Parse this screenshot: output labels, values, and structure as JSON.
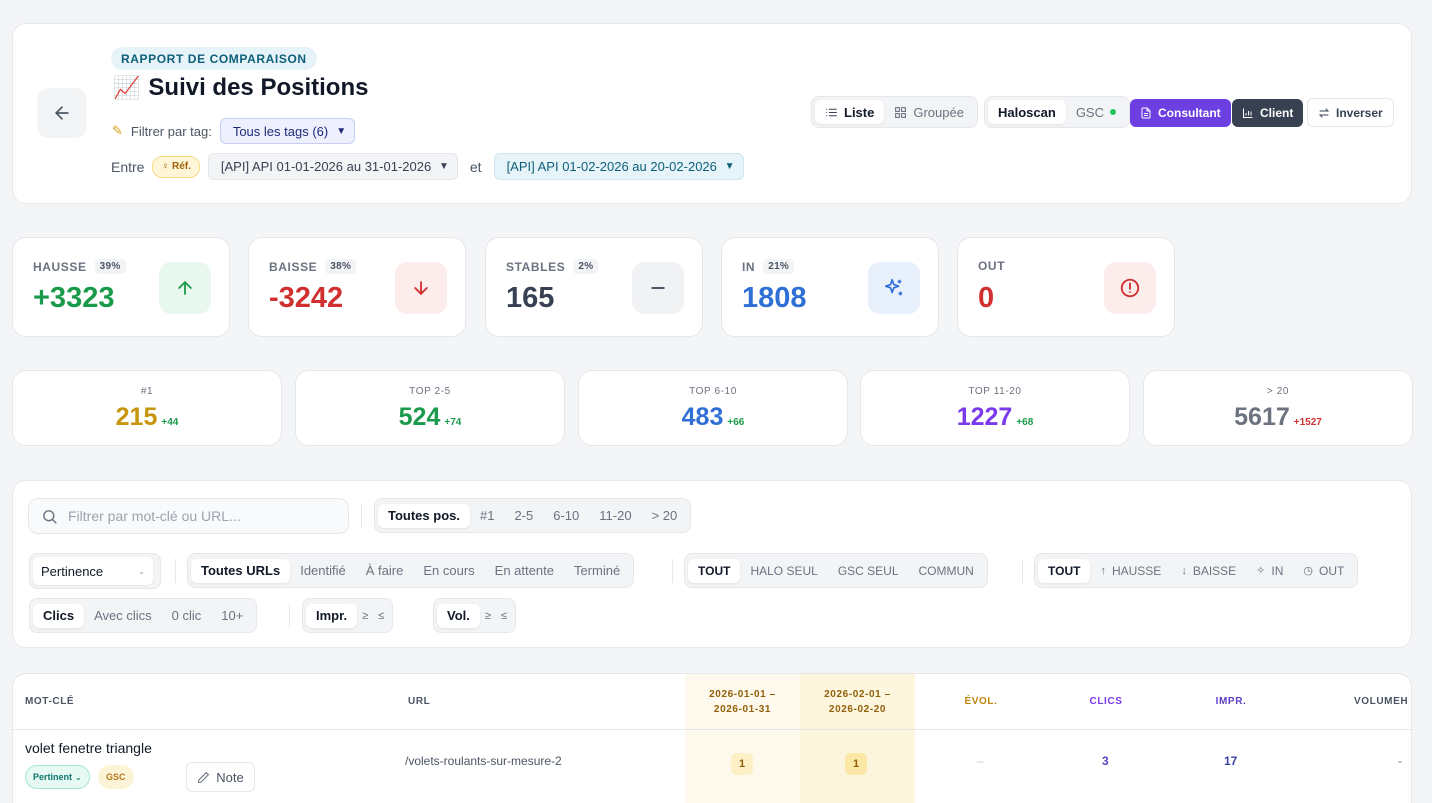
{
  "header": {
    "report_badge": "RAPPORT DE COMPARAISON",
    "emoji": "📈",
    "title": "Suivi des Positions",
    "tag_filter_label": "Filtrer par tag:",
    "tag_filter_value": "Tous les tags (6)",
    "between_label": "Entre",
    "ref_badge": "Réf.",
    "date_a": "[API] API 01-01-2026 au 31-01-2026",
    "and_label": "et",
    "date_b": "[API] API 01-02-2026 au 20-02-2026",
    "view_toggle": [
      "Liste",
      "Groupée"
    ],
    "source_toggle": [
      "Haloscan",
      "GSC"
    ],
    "consultant_label": "Consultant",
    "client_label": "Client",
    "invert_label": "Inverser"
  },
  "stats": [
    {
      "key": "hausse",
      "label": "HAUSSE",
      "pct": "39%",
      "value": "+3323",
      "color": "#1a9a4b",
      "icon_bg": "#e9f8ef",
      "icon": "arrow-up-icon"
    },
    {
      "key": "baisse",
      "label": "BAISSE",
      "pct": "38%",
      "value": "-3242",
      "color": "#d03030",
      "icon_bg": "#fdecec",
      "icon": "arrow-down-icon"
    },
    {
      "key": "stables",
      "label": "STABLES",
      "pct": "2%",
      "value": "165",
      "color": "#374151",
      "icon_bg": "#f1f2f4",
      "icon": "minus-icon"
    },
    {
      "key": "in",
      "label": "IN",
      "pct": "21%",
      "value": "1808",
      "color": "#2f6fd6",
      "icon_bg": "#e8f0fc",
      "icon": "sparkles-icon"
    },
    {
      "key": "out",
      "label": "OUT",
      "pct": "",
      "value": "0",
      "color": "#d03030",
      "icon_bg": "#fdecec",
      "icon": "alert-circle-icon"
    }
  ],
  "ranks": [
    {
      "label": "#1",
      "value": "215",
      "delta": "+44",
      "color": "#c8960c",
      "delta_color": "#1a9a4b"
    },
    {
      "label": "TOP 2-5",
      "value": "524",
      "delta": "+74",
      "color": "#1a9a4b",
      "delta_color": "#1a9a4b"
    },
    {
      "label": "TOP 6-10",
      "value": "483",
      "delta": "+66",
      "color": "#2f6fd6",
      "delta_color": "#1a9a4b"
    },
    {
      "label": "TOP 11-20",
      "value": "1227",
      "delta": "+68",
      "color": "#7c3aed",
      "delta_color": "#1a9a4b"
    },
    {
      "label": "> 20",
      "value": "5617",
      "delta": "+1527",
      "color": "#6b7280",
      "delta_color": "#d03030"
    }
  ],
  "filters": {
    "search_placeholder": "Filtrer par mot-clé ou URL...",
    "positions": [
      "Toutes pos.",
      "#1",
      "2-5",
      "6-10",
      "11-20",
      "> 20"
    ],
    "relevance": "Pertinence",
    "url_status": [
      "Toutes URLs",
      "Identifié",
      "À faire",
      "En cours",
      "En attente",
      "Terminé"
    ],
    "source": [
      "TOUT",
      "HALO SEUL",
      "GSC SEUL",
      "COMMUN"
    ],
    "movement": [
      "TOUT",
      "HAUSSE",
      "BAISSE",
      "IN",
      "OUT"
    ],
    "movement_icons": [
      "",
      "↑",
      "↓",
      "✧",
      "◷"
    ],
    "clicks": [
      "Clics",
      "Avec clics",
      "0 clic",
      "10+"
    ],
    "impr_label": "Impr.",
    "vol_label": "Vol.",
    "gte": "≥",
    "lte": "≤"
  },
  "table": {
    "headers": {
      "keyword": "MOT-CLÉ",
      "url": "URL",
      "period_a_1": "2026-01-01 –",
      "period_a_2": "2026-01-31",
      "period_b_1": "2026-02-01 –",
      "period_b_2": "2026-02-20",
      "evol": "ÉVOL.",
      "clicks": "CLICS",
      "impr": "IMPR.",
      "volume": "VOLUMEH"
    },
    "rows": [
      {
        "keyword": "volet fenetre triangle",
        "relevance": "Pertinent",
        "source": "GSC",
        "note_label": "Note",
        "url": "/volets-roulants-sur-mesure-2",
        "pos_a": "1",
        "pos_b": "1",
        "evol": "–",
        "clicks": "3",
        "impr": "17",
        "volume": "-"
      }
    ]
  }
}
